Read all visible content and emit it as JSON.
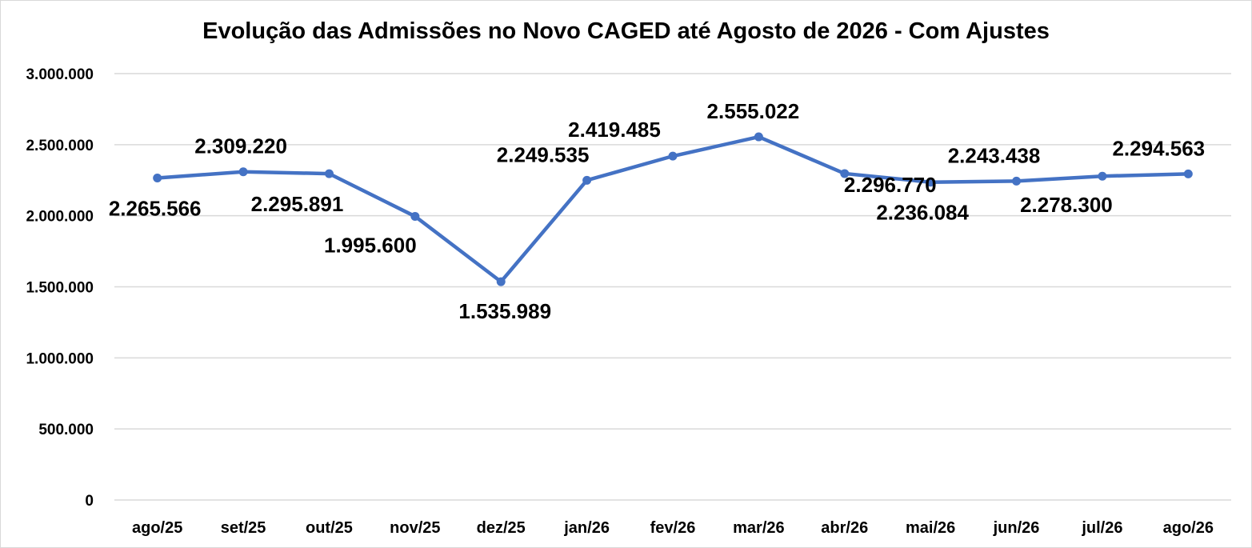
{
  "chart_data": {
    "type": "line",
    "title": "Evolução das Admissões no Novo CAGED até Agosto de 2026 - Com Ajustes",
    "categories": [
      "ago/25",
      "set/25",
      "out/25",
      "nov/25",
      "dez/25",
      "jan/26",
      "fev/26",
      "mar/26",
      "abr/26",
      "mai/26",
      "jun/26",
      "jul/26",
      "ago/26"
    ],
    "series": [
      {
        "values": [
          2265566,
          2309220,
          2295891,
          1995600,
          1535989,
          2249535,
          2419485,
          2555022,
          2296770,
          2236084,
          2243438,
          2278300,
          2294563
        ],
        "data_labels": [
          "2.265.566",
          "2.309.220",
          "2.295.891",
          "1.995.600",
          "1.535.989",
          "2.249.535",
          "2.419.485",
          "2.555.022",
          "2.296.770",
          "2.236.084",
          "2.243.438",
          "2.278.300",
          "2.294.563"
        ],
        "color": "#4472C4"
      }
    ],
    "ylim": [
      0,
      3000000
    ],
    "yticks": [
      0,
      500000,
      1000000,
      1500000,
      2000000,
      2500000,
      3000000
    ],
    "ytick_labels": [
      "0",
      "500.000",
      "1.000.000",
      "1.500.000",
      "2.000.000",
      "2.500.000",
      "3.000.000"
    ],
    "grid": true,
    "xlabel": "",
    "ylabel": ""
  },
  "colors": {
    "line": "#4472C4",
    "grid": "#d9d9d9"
  }
}
